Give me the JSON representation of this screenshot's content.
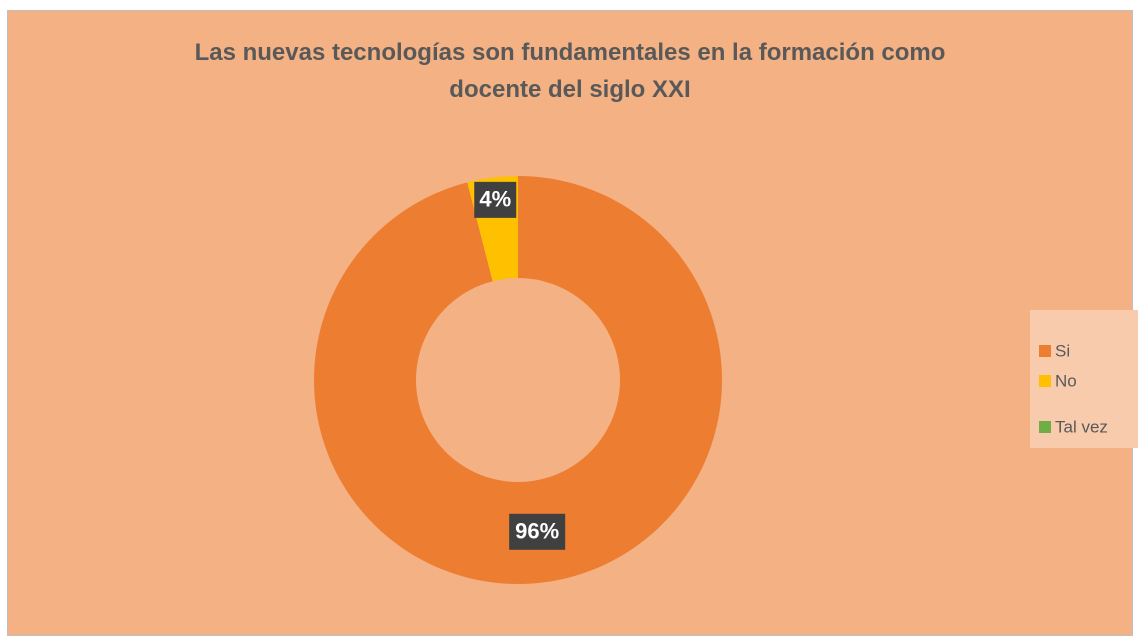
{
  "chart_data": {
    "type": "donut",
    "title": "Las nuevas tecnologías son fundamentales en la formación como docente del siglo XXI",
    "categories": [
      "Si",
      "No",
      "Tal vez"
    ],
    "values": [
      96,
      4,
      0
    ],
    "value_labels": [
      "96%",
      "4%",
      null
    ],
    "colors": [
      "#ed7d31",
      "#ffc000",
      "#70ad47"
    ],
    "legend": "right"
  }
}
